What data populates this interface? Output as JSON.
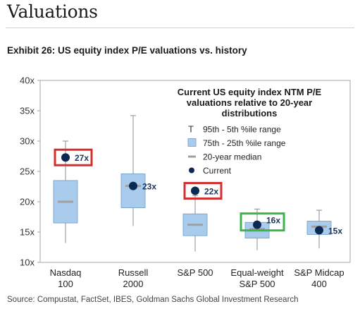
{
  "header": {
    "title": "Valuations"
  },
  "exhibit": {
    "title": "Exhibit 26: US equity index P/E valuations vs. history"
  },
  "source": "Source: Compustat, FactSet, IBES, Goldman Sachs Global Investment Research",
  "chart_data": {
    "type": "box",
    "title": "Current US equity index NTM P/E valuations relative to 20-year distributions",
    "title_lines": [
      "Current US equity index NTM P/E",
      "valuations relative to 20-year",
      "distributions"
    ],
    "ylim": [
      10,
      40
    ],
    "yticks": [
      10,
      15,
      20,
      25,
      30,
      35,
      40
    ],
    "ytick_labels": [
      "10x",
      "15x",
      "20x",
      "25x",
      "30x",
      "35x",
      "40x"
    ],
    "grid": false,
    "legend": {
      "placement": "top-right",
      "entries": [
        {
          "marker": "T",
          "label": "95th - 5th %ile range"
        },
        {
          "marker": "box",
          "label": "75th - 25th %ile range"
        },
        {
          "marker": "dash",
          "label": "20-year median"
        },
        {
          "marker": "dot",
          "label": "Current"
        }
      ]
    },
    "categories": [
      {
        "lines": [
          "Nasdaq",
          "100"
        ],
        "p5": 13.2,
        "p25": 16.5,
        "median": 20.0,
        "p75": 23.5,
        "p95": 30.0,
        "current": 27.3,
        "current_label": "27x",
        "highlight": "red",
        "label_pos": "right"
      },
      {
        "lines": [
          "Russell",
          "2000"
        ],
        "p5": 16.0,
        "p25": 19.0,
        "median": 22.6,
        "p75": 24.6,
        "p95": 34.2,
        "current": 22.6,
        "current_label": "23x",
        "highlight": null,
        "label_pos": "right"
      },
      {
        "lines": [
          "S&P 500"
        ],
        "p5": 11.8,
        "p25": 14.4,
        "median": 16.2,
        "p75": 18.0,
        "p95": 21.0,
        "current": 21.8,
        "current_label": "22x",
        "highlight": "red",
        "label_pos": "right"
      },
      {
        "lines": [
          "Equal-weight",
          "S&P 500"
        ],
        "p5": 12.0,
        "p25": 14.0,
        "median": 15.5,
        "p75": 16.6,
        "p95": 18.8,
        "current": 16.2,
        "current_label": "16x",
        "highlight": "green",
        "label_pos": "upper-right"
      },
      {
        "lines": [
          "S&P Midcap",
          "400"
        ],
        "p5": 12.3,
        "p25": 14.6,
        "median": 15.9,
        "p75": 16.8,
        "p95": 18.6,
        "current": 15.3,
        "current_label": "15x",
        "highlight": null,
        "label_pos": "right"
      }
    ],
    "colors": {
      "box_fill": "#a9cbec",
      "box_stroke": "#6f9cc8",
      "whisker": "#8c8c8c",
      "median": "#a0a0a0",
      "current": "#0b2a52",
      "label": "#1c355e",
      "highlight_red": "#d32f2f",
      "highlight_green": "#3cb44b"
    }
  }
}
